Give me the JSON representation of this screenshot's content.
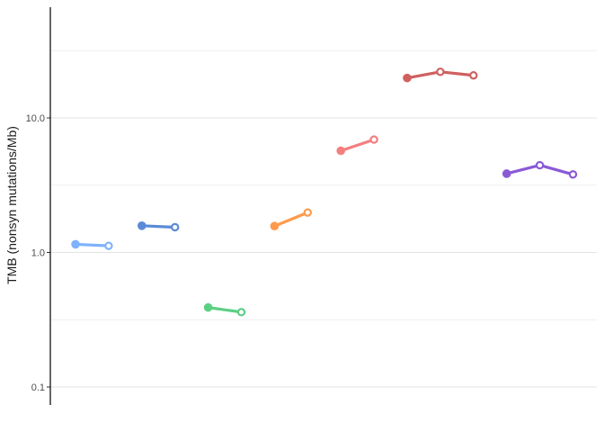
{
  "chart_data": {
    "type": "line",
    "ylabel": "TMB (nonsyn mutations/Mb)",
    "xlabel": "",
    "y_scale": "log10",
    "ylim": [
      0.075,
      60
    ],
    "y_ticks": [
      {
        "value": 0.1,
        "label": "0.1"
      },
      {
        "value": 1,
        "label": "1.0"
      },
      {
        "value": 10,
        "label": "10.0"
      }
    ],
    "minor_gridlines": [
      0.3162,
      3.162,
      31.62
    ],
    "grid": true,
    "legend": "none",
    "point_styles": {
      "first": "filled",
      "rest": "hollow"
    },
    "series": [
      {
        "color": "#7fb2ff",
        "x": [
          1,
          2
        ],
        "y": [
          1.15,
          1.12
        ]
      },
      {
        "color": "#5b8bd6",
        "x": [
          3,
          4
        ],
        "y": [
          1.58,
          1.54
        ]
      },
      {
        "color": "#5ccf84",
        "x": [
          5,
          6
        ],
        "y": [
          0.39,
          0.36
        ]
      },
      {
        "color": "#ff9a4d",
        "x": [
          7,
          8
        ],
        "y": [
          1.57,
          1.98
        ]
      },
      {
        "color": "#f47f7f",
        "x": [
          9,
          10
        ],
        "y": [
          5.7,
          6.9
        ]
      },
      {
        "color": "#d06060",
        "x": [
          11,
          12,
          13
        ],
        "y": [
          19.8,
          22.0,
          20.7
        ]
      },
      {
        "color": "#8a5ad6",
        "x": [
          14,
          15,
          16
        ],
        "y": [
          3.85,
          4.45,
          3.8
        ]
      }
    ]
  }
}
